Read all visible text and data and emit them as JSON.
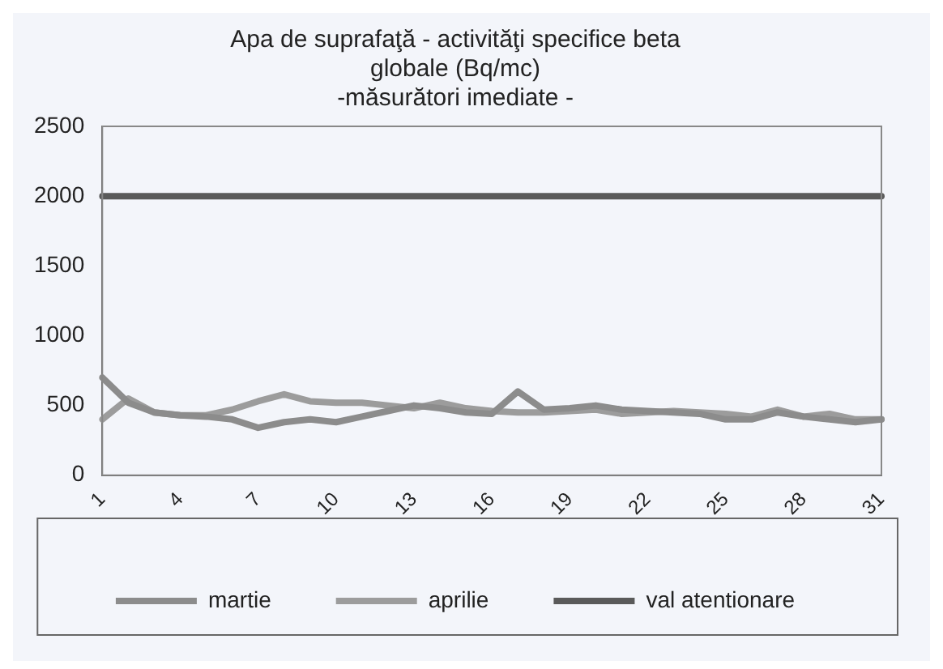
{
  "chart_data": {
    "type": "line",
    "title": [
      "Apa de suprafaţă - activităţi specifice beta",
      "globale (Bq/mc)",
      "-măsurători imediate -"
    ],
    "categories": [
      "1",
      null,
      null,
      "4",
      null,
      null,
      "7",
      null,
      null,
      "10",
      null,
      null,
      "13",
      null,
      null,
      "16",
      null,
      null,
      "19",
      null,
      null,
      "22",
      null,
      null,
      "25",
      null,
      null,
      "28",
      null,
      null,
      "31"
    ],
    "series": [
      {
        "name": "martie",
        "color": "#8c8c8c",
        "values": [
          700,
          520,
          450,
          430,
          420,
          400,
          340,
          380,
          400,
          380,
          420,
          460,
          500,
          480,
          450,
          440,
          600,
          470,
          480,
          500,
          470,
          460,
          450,
          440,
          400,
          400,
          450,
          420,
          400,
          380,
          400
        ]
      },
      {
        "name": "aprilie",
        "color": "#9c9c9c",
        "values": [
          400,
          550,
          450,
          430,
          430,
          470,
          530,
          580,
          530,
          520,
          520,
          500,
          480,
          520,
          480,
          460,
          450,
          450,
          460,
          470,
          440,
          450,
          460,
          450,
          440,
          420,
          470,
          420,
          440,
          400,
          400
        ]
      },
      {
        "name": "val atentionare",
        "color": "#5a5a5a",
        "values": [
          2000,
          2000,
          2000,
          2000,
          2000,
          2000,
          2000,
          2000,
          2000,
          2000,
          2000,
          2000,
          2000,
          2000,
          2000,
          2000,
          2000,
          2000,
          2000,
          2000,
          2000,
          2000,
          2000,
          2000,
          2000,
          2000,
          2000,
          2000,
          2000,
          2000,
          2000
        ]
      }
    ],
    "ylim": [
      0,
      2500
    ],
    "yticks": [
      0,
      500,
      1000,
      1500,
      2000,
      2500
    ],
    "grid": false,
    "legend": "bottom",
    "marker": "none",
    "line_style": "solid"
  }
}
